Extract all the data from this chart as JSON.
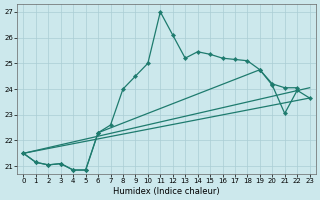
{
  "xlabel": "Humidex (Indice chaleur)",
  "bg_color": "#cce8ec",
  "line_color": "#1e7b6e",
  "grid_color": "#aacdd4",
  "xlim": [
    -0.5,
    23.5
  ],
  "ylim": [
    20.7,
    27.3
  ],
  "yticks": [
    21,
    22,
    23,
    24,
    25,
    26,
    27
  ],
  "xticks": [
    0,
    1,
    2,
    3,
    4,
    5,
    6,
    7,
    8,
    9,
    10,
    11,
    12,
    13,
    14,
    15,
    16,
    17,
    18,
    19,
    20,
    21,
    22,
    23
  ],
  "line1_x": [
    0,
    1,
    2,
    3,
    4,
    5,
    6,
    7,
    8,
    9,
    10,
    11,
    12,
    13,
    14,
    15,
    16,
    17,
    18,
    19,
    20,
    21,
    22
  ],
  "line1_y": [
    21.5,
    21.15,
    21.05,
    21.1,
    20.85,
    20.85,
    22.3,
    22.6,
    24.0,
    24.5,
    25.0,
    27.0,
    26.1,
    25.2,
    25.45,
    25.35,
    25.2,
    25.15,
    25.1,
    24.75,
    24.2,
    24.05,
    24.05
  ],
  "line2_x": [
    0,
    1,
    2,
    3,
    4,
    5,
    6,
    19,
    20,
    21,
    22,
    23
  ],
  "line2_y": [
    21.5,
    21.15,
    21.05,
    21.1,
    20.85,
    20.85,
    22.3,
    24.75,
    24.15,
    23.05,
    23.95,
    23.65
  ],
  "line3_x": [
    0,
    23
  ],
  "line3_y": [
    21.5,
    23.65
  ],
  "line4_x": [
    0,
    23
  ],
  "line4_y": [
    21.5,
    24.05
  ],
  "marker_size": 2.2,
  "line_width": 0.9,
  "tick_fontsize": 5.0,
  "xlabel_fontsize": 6.0
}
